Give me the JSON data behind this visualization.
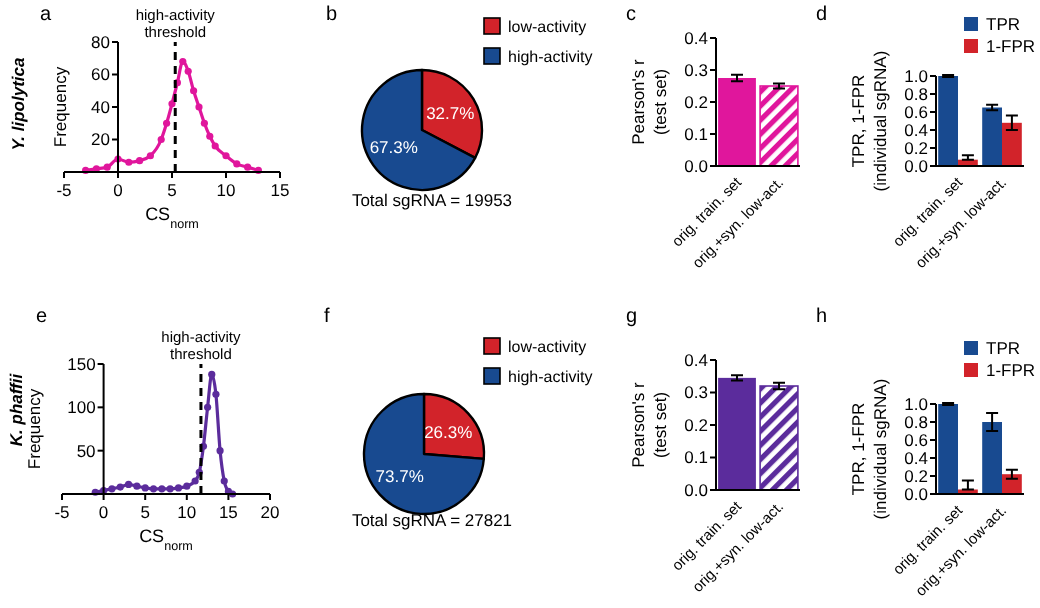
{
  "chart_data": [
    {
      "type": "line",
      "title": "a",
      "annotations": [
        "Y. lipolytica"
      ],
      "xlabel": "CS$_{norm}$",
      "ylabel": "Frequency",
      "x": [
        -3,
        -2,
        -1,
        0,
        1,
        2,
        3,
        4,
        4.5,
        5,
        5.5,
        6,
        6.5,
        7,
        7.5,
        8,
        8.5,
        9,
        10,
        11,
        12,
        13
      ],
      "series": [
        {
          "color": "#e0169c",
          "values": [
            1,
            2,
            3,
            8,
            6,
            7,
            10,
            20,
            30,
            42,
            55,
            68,
            62,
            50,
            40,
            30,
            22,
            16,
            10,
            5,
            3,
            1
          ]
        }
      ],
      "xlim": [
        -5,
        15
      ],
      "xticks": [
        -5,
        0,
        5,
        10,
        15
      ],
      "ylim": [
        0,
        80
      ],
      "yticks": [
        20,
        40,
        60,
        80
      ],
      "marker": "circle",
      "ref_lines": [
        {
          "axis": "x",
          "value": 5.3,
          "label": "high-activity threshold",
          "line_style": "dashed",
          "color": "#000000"
        }
      ]
    },
    {
      "type": "pie",
      "title": "b",
      "categories": [
        "low-activity",
        "high-activity"
      ],
      "values": [
        32.7,
        67.3
      ],
      "colors": [
        "#d2232a",
        "#184a90"
      ],
      "value_labels": [
        "32.7%",
        "67.3%"
      ],
      "legend": "right",
      "annotations": [
        "Total sgRNA = 19953"
      ]
    },
    {
      "type": "bar",
      "title": "c",
      "categories": [
        "orig. train. set",
        "orig.+syn. low-act."
      ],
      "ylabel": "Pearson's r (test set)",
      "series": [
        {
          "color": "#e0169c",
          "values": [
            0.275,
            0.25
          ],
          "errors": [
            0.01,
            0.008
          ]
        }
      ],
      "ylim": [
        0,
        0.4
      ],
      "yticks": [
        {
          "value": 0,
          "label": "0.0"
        },
        {
          "value": 0.1,
          "label": "0.1"
        },
        {
          "value": 0.2,
          "label": "0.2"
        },
        {
          "value": 0.3,
          "label": "0.3"
        },
        {
          "value": 0.4,
          "label": "0.4"
        }
      ]
    },
    {
      "type": "bar",
      "title": "d",
      "categories": [
        "orig. train. set",
        "orig.+syn. low-act."
      ],
      "ylabel": "TPR, 1-FPR (individual sgRNA)",
      "legend": "top right",
      "series": [
        {
          "name": "TPR",
          "color": "#184a90",
          "values": [
            1.0,
            0.65
          ],
          "errors": [
            0.01,
            0.03
          ]
        },
        {
          "name": "1-FPR",
          "color": "#d2232a",
          "values": [
            0.07,
            0.48
          ],
          "errors": [
            [
              0.07,
              0.12
            ],
            0.08
          ]
        }
      ],
      "ylim": [
        0,
        1
      ],
      "yticks": [
        {
          "value": 0,
          "label": "0.0"
        },
        {
          "value": 0.2,
          "label": "0.2"
        },
        {
          "value": 0.4,
          "label": "0.4"
        },
        {
          "value": 0.6,
          "label": "0.6"
        },
        {
          "value": 0.8,
          "label": "0.8"
        },
        {
          "value": 1,
          "label": "1.0"
        }
      ]
    },
    {
      "type": "line",
      "title": "e",
      "annotations": [
        "K. phaffii"
      ],
      "xlabel": "CS$_{norm}$",
      "ylabel": "Frequency",
      "x": [
        -1,
        0,
        1,
        2,
        3,
        4,
        5,
        6,
        7,
        8,
        9,
        10,
        11,
        11.5,
        12,
        12.5,
        13,
        13.5,
        14,
        14.5,
        15,
        15.5
      ],
      "series": [
        {
          "color": "#5b2c9c",
          "values": [
            2,
            4,
            6,
            8,
            11,
            9,
            7,
            6,
            6,
            6,
            7,
            9,
            15,
            25,
            55,
            100,
            138,
            115,
            50,
            15,
            3,
            0
          ]
        }
      ],
      "xlim": [
        -5,
        20
      ],
      "xticks": [
        -5,
        0,
        5,
        10,
        15,
        20
      ],
      "ylim": [
        0,
        150
      ],
      "yticks": [
        50,
        100,
        150
      ],
      "marker": "circle",
      "ref_lines": [
        {
          "axis": "x",
          "value": 11.7,
          "label": "high-activity threshold",
          "line_style": "dashed",
          "color": "#000000"
        }
      ]
    },
    {
      "type": "pie",
      "title": "f",
      "categories": [
        "low-activity",
        "high-activity"
      ],
      "values": [
        26.3,
        73.7
      ],
      "colors": [
        "#d2232a",
        "#184a90"
      ],
      "value_labels": [
        "26.3%",
        "73.7%"
      ],
      "legend": "right",
      "annotations": [
        "Total sgRNA = 27821"
      ]
    },
    {
      "type": "bar",
      "title": "g",
      "categories": [
        "orig. train. set",
        "orig.+syn. low-act."
      ],
      "ylabel": "Pearson's r (test set)",
      "series": [
        {
          "color": "#5b2c9c",
          "values": [
            0.345,
            0.32
          ],
          "errors": [
            0.008,
            0.01
          ]
        }
      ],
      "ylim": [
        0,
        0.4
      ],
      "yticks": [
        {
          "value": 0,
          "label": "0.0"
        },
        {
          "value": 0.1,
          "label": "0.1"
        },
        {
          "value": 0.2,
          "label": "0.2"
        },
        {
          "value": 0.3,
          "label": "0.3"
        },
        {
          "value": 0.4,
          "label": "0.4"
        }
      ]
    },
    {
      "type": "bar",
      "title": "h",
      "categories": [
        "orig. train. set",
        "orig.+syn. low-act."
      ],
      "ylabel": "TPR, 1-FPR (individual sgRNA)",
      "legend": "top right",
      "series": [
        {
          "name": "TPR",
          "color": "#184a90",
          "values": [
            1.0,
            0.8
          ],
          "errors": [
            0.01,
            0.1
          ]
        },
        {
          "name": "1-FPR",
          "color": "#d2232a",
          "values": [
            0.05,
            0.22
          ],
          "errors": [
            [
              0.05,
              0.15
            ],
            0.05
          ]
        }
      ],
      "ylim": [
        0,
        1
      ],
      "yticks": [
        {
          "value": 0,
          "label": "0.0"
        },
        {
          "value": 0.2,
          "label": "0.2"
        },
        {
          "value": 0.4,
          "label": "0.4"
        },
        {
          "value": 0.6,
          "label": "0.6"
        },
        {
          "value": 0.8,
          "label": "0.8"
        },
        {
          "value": 1,
          "label": "1.0"
        }
      ]
    }
  ]
}
